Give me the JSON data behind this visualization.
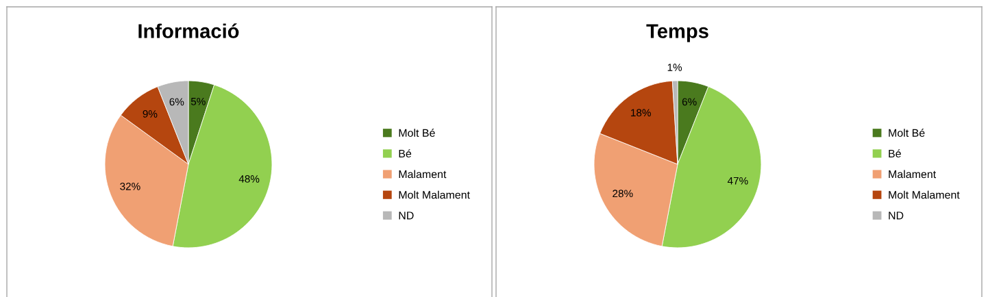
{
  "chart_data": [
    {
      "type": "pie",
      "title": "Informació",
      "categories": [
        "Molt Bé",
        "Bé",
        "Malament",
        "Molt Malament",
        "ND"
      ],
      "values": [
        5,
        48,
        32,
        9,
        6
      ],
      "colors": [
        "#4a7a1e",
        "#92d050",
        "#f0a073",
        "#b5460f",
        "#b8b8b8"
      ],
      "value_labels": [
        "5%",
        "48%",
        "32%",
        "9%",
        "6%"
      ],
      "legend": "right"
    },
    {
      "type": "pie",
      "title": "Temps",
      "categories": [
        "Molt Bé",
        "Bé",
        "Malament",
        "Molt Malament",
        "ND"
      ],
      "values": [
        6,
        47,
        28,
        18,
        1
      ],
      "colors": [
        "#4a7a1e",
        "#92d050",
        "#f0a073",
        "#b5460f",
        "#b8b8b8"
      ],
      "value_labels": [
        "6%",
        "47%",
        "28%",
        "18%",
        "1%"
      ],
      "legend": "right"
    }
  ]
}
